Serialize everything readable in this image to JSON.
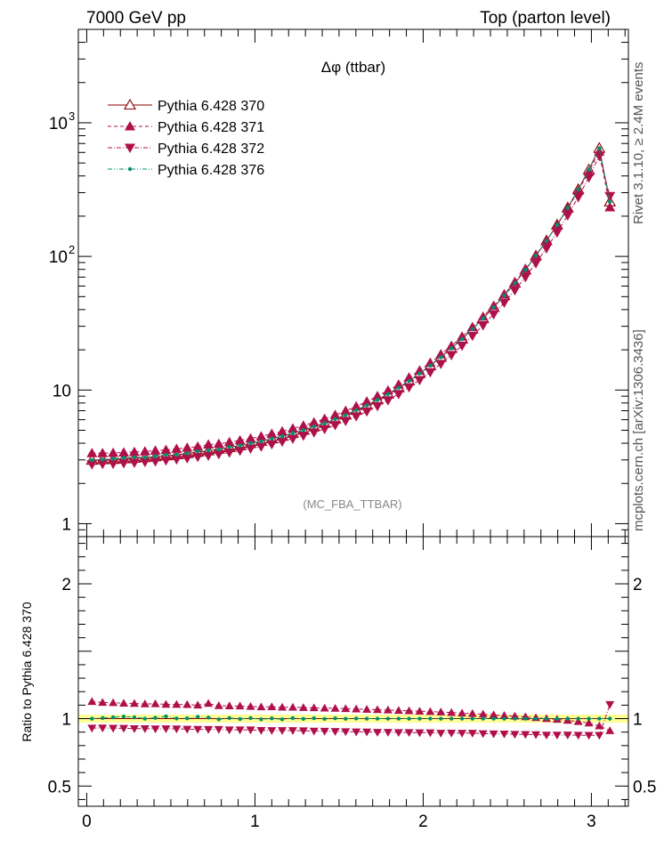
{
  "header": {
    "left": "7000 GeV pp",
    "right": "Top (parton level)"
  },
  "side_labels": {
    "rivet": "Rivet 3.1.10, ≥ 2.4M events",
    "mcplots": "mcplots.cern.ch [arXiv:1306.3436]"
  },
  "chart_data": [
    {
      "type": "line",
      "title": "Δφ (ttbar)",
      "annotation": "(MC_FBA_TTBAR)",
      "xlim": [
        -0.05,
        3.22
      ],
      "ylim": [
        0.8,
        5000
      ],
      "yscale": "log",
      "y_ticks": [
        {
          "value": 1,
          "label": "1"
        },
        {
          "value": 10,
          "label": "10"
        },
        {
          "value": 100,
          "label": "10",
          "sup": "2"
        },
        {
          "value": 1000,
          "label": "10",
          "sup": "3"
        }
      ],
      "legend_position": "top-left",
      "x": [
        0.031,
        0.094,
        0.157,
        0.22,
        0.283,
        0.346,
        0.408,
        0.471,
        0.534,
        0.597,
        0.66,
        0.723,
        0.785,
        0.848,
        0.911,
        0.974,
        1.037,
        1.1,
        1.162,
        1.225,
        1.288,
        1.351,
        1.414,
        1.477,
        1.539,
        1.602,
        1.665,
        1.728,
        1.791,
        1.854,
        1.916,
        1.979,
        2.042,
        2.105,
        2.168,
        2.231,
        2.293,
        2.356,
        2.419,
        2.482,
        2.545,
        2.608,
        2.67,
        2.733,
        2.796,
        2.859,
        2.922,
        2.985,
        3.047,
        3.11
      ],
      "series": [
        {
          "name": "Pythia 6.428 370",
          "color": "#8b0000",
          "marker": "triangle-open",
          "dash": "solid",
          "values": [
            2.99,
            3.01,
            3.03,
            3.06,
            3.09,
            3.13,
            3.17,
            3.22,
            3.28,
            3.35,
            3.43,
            3.51,
            3.61,
            3.72,
            3.84,
            3.98,
            4.14,
            4.32,
            4.52,
            4.75,
            5.01,
            5.31,
            5.65,
            6.05,
            6.51,
            7.05,
            7.68,
            8.44,
            9.33,
            10.4,
            11.7,
            13.3,
            15.2,
            17.6,
            20.5,
            24.1,
            28.6,
            34.3,
            41.6,
            50.9,
            63.1,
            79.3,
            101,
            131,
            172,
            231,
            317,
            445,
            645,
            256
          ]
        },
        {
          "name": "Pythia 6.428 371",
          "color": "#b0104a",
          "marker": "triangle-up",
          "dash": "dashed",
          "values": [
            3.37,
            3.37,
            3.39,
            3.41,
            3.44,
            3.47,
            3.52,
            3.56,
            3.63,
            3.7,
            3.77,
            3.91,
            3.96,
            4.07,
            4.2,
            4.34,
            4.5,
            4.7,
            4.9,
            5.15,
            5.42,
            5.73,
            6.09,
            6.51,
            6.99,
            7.55,
            8.21,
            9.0,
            9.93,
            11.0,
            12.4,
            14.0,
            16.0,
            18.5,
            21.4,
            25.1,
            29.6,
            35.4,
            42.7,
            52.1,
            64.2,
            80.3,
            102,
            131,
            171,
            228,
            310,
            430,
            610,
            233
          ]
        },
        {
          "name": "Pythia 6.428 372",
          "color": "#b0104a",
          "marker": "triangle-down",
          "dash": "dashdot",
          "values": [
            2.78,
            2.8,
            2.81,
            2.84,
            2.86,
            2.9,
            2.93,
            2.98,
            3.03,
            3.09,
            3.16,
            3.23,
            3.32,
            3.41,
            3.52,
            3.65,
            3.78,
            3.94,
            4.12,
            4.33,
            4.56,
            4.82,
            5.12,
            5.47,
            5.88,
            6.36,
            6.92,
            7.59,
            8.39,
            9.33,
            10.5,
            11.9,
            13.6,
            15.7,
            18.3,
            21.5,
            25.5,
            30.5,
            36.9,
            45.1,
            55.8,
            70.0,
            89.0,
            115,
            151,
            203,
            278,
            390,
            565,
            283
          ]
        },
        {
          "name": "Pythia 6.428 376",
          "color": "#009070",
          "marker": "dot",
          "dash": "dashdotdot",
          "values": [
            2.99,
            3.02,
            3.06,
            3.11,
            3.14,
            3.13,
            3.19,
            3.28,
            3.28,
            3.36,
            3.48,
            3.54,
            3.59,
            3.74,
            3.83,
            4.0,
            4.12,
            4.33,
            4.5,
            4.77,
            5.0,
            5.33,
            5.64,
            6.06,
            6.5,
            7.06,
            7.68,
            8.44,
            9.33,
            10.4,
            11.7,
            13.3,
            15.2,
            17.6,
            20.5,
            24.1,
            28.6,
            34.3,
            41.6,
            50.9,
            63.1,
            79.3,
            101,
            131,
            172,
            231,
            317,
            445,
            645,
            256
          ]
        }
      ]
    },
    {
      "type": "line",
      "ylabel": "Ratio to Pythia 6.428 370",
      "xlim": [
        -0.05,
        3.22
      ],
      "ylim": [
        0.35,
        2.35
      ],
      "x_ticks": [
        0,
        1,
        2,
        3
      ],
      "y_ticks": [
        0.5,
        1,
        2
      ],
      "band": {
        "lower": 0.97,
        "upper": 1.03,
        "color": "#ffff66"
      },
      "x": [
        0.031,
        0.094,
        0.157,
        0.22,
        0.283,
        0.346,
        0.408,
        0.471,
        0.534,
        0.597,
        0.66,
        0.723,
        0.785,
        0.848,
        0.911,
        0.974,
        1.037,
        1.1,
        1.162,
        1.225,
        1.288,
        1.351,
        1.414,
        1.477,
        1.539,
        1.602,
        1.665,
        1.728,
        1.791,
        1.854,
        1.916,
        1.979,
        2.042,
        2.105,
        2.168,
        2.231,
        2.293,
        2.356,
        2.419,
        2.482,
        2.545,
        2.608,
        2.67,
        2.733,
        2.796,
        2.859,
        2.922,
        2.985,
        3.047,
        3.11
      ],
      "series": [
        {
          "name": "Pythia 6.428 370",
          "color": "#8b0000",
          "marker": "none",
          "dash": "solid",
          "values": [
            1,
            1,
            1,
            1,
            1,
            1,
            1,
            1,
            1,
            1,
            1,
            1,
            1,
            1,
            1,
            1,
            1,
            1,
            1,
            1,
            1,
            1,
            1,
            1,
            1,
            1,
            1,
            1,
            1,
            1,
            1,
            1,
            1,
            1,
            1,
            1,
            1,
            1,
            1,
            1,
            1,
            1,
            1,
            1,
            1,
            1,
            1,
            1,
            1,
            1
          ]
        },
        {
          "name": "Pythia 6.428 371",
          "color": "#b0104a",
          "marker": "triangle-up",
          "dash": "dashed",
          "values": [
            1.126,
            1.12,
            1.118,
            1.114,
            1.112,
            1.109,
            1.11,
            1.106,
            1.105,
            1.104,
            1.1,
            1.112,
            1.096,
            1.094,
            1.093,
            1.09,
            1.087,
            1.088,
            1.084,
            1.084,
            1.082,
            1.08,
            1.078,
            1.076,
            1.074,
            1.071,
            1.069,
            1.066,
            1.064,
            1.06,
            1.058,
            1.055,
            1.052,
            1.049,
            1.045,
            1.041,
            1.037,
            1.033,
            1.028,
            1.023,
            1.018,
            1.013,
            1.007,
            1.0,
            0.994,
            0.987,
            0.978,
            0.967,
            0.946,
            0.91
          ]
        },
        {
          "name": "Pythia 6.428 372",
          "color": "#b0104a",
          "marker": "triangle-down",
          "dash": "dashdot",
          "values": [
            0.93,
            0.931,
            0.929,
            0.928,
            0.926,
            0.926,
            0.924,
            0.925,
            0.924,
            0.922,
            0.921,
            0.92,
            0.92,
            0.917,
            0.917,
            0.917,
            0.913,
            0.912,
            0.912,
            0.912,
            0.91,
            0.908,
            0.907,
            0.905,
            0.904,
            0.902,
            0.901,
            0.899,
            0.899,
            0.897,
            0.897,
            0.895,
            0.895,
            0.892,
            0.893,
            0.892,
            0.892,
            0.889,
            0.887,
            0.886,
            0.884,
            0.883,
            0.881,
            0.878,
            0.878,
            0.879,
            0.877,
            0.876,
            0.876,
            1.105
          ]
        },
        {
          "name": "Pythia 6.428 376",
          "color": "#009070",
          "marker": "dot",
          "dash": "dashdotdot",
          "values": [
            1.0,
            1.005,
            1.01,
            1.015,
            1.01,
            1.0,
            1.006,
            1.017,
            1.001,
            1.002,
            1.014,
            1.008,
            0.995,
            1.005,
            0.997,
            1.004,
            0.995,
            1.002,
            0.995,
            1.004,
            0.998,
            1.003,
            0.998,
            1.002,
            0.999,
            1.001,
            1.0,
            1.0,
            1.0,
            1.0,
            1.0,
            1.0,
            1.0,
            1.0,
            1.0,
            1.0,
            1.0,
            1.0,
            1.0,
            1.0,
            1.0,
            1.0,
            1.0,
            1.0,
            1.0,
            1.0,
            1.0,
            1.0,
            1.0,
            1.0
          ]
        }
      ]
    }
  ]
}
